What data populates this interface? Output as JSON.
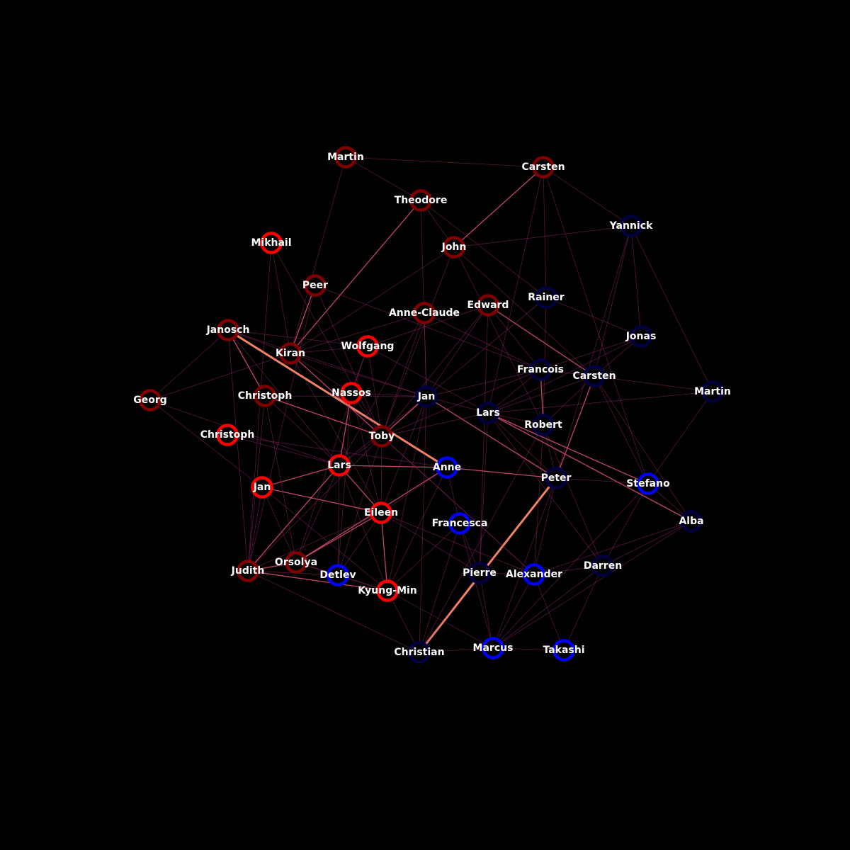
{
  "colors": {
    "background": "#000000",
    "label": "#ffffff",
    "node_fill": "#000000",
    "edge_strong": "#ff8a6a",
    "edge_mid": "#e8507a",
    "edge_faint": "#b02a7a"
  },
  "nodes": [
    {
      "id": "martin_top",
      "label": "Martin",
      "color": "#800000"
    },
    {
      "id": "carsten_top",
      "label": "Carsten",
      "color": "#800000"
    },
    {
      "id": "theodore",
      "label": "Theodore",
      "color": "#800000"
    },
    {
      "id": "yannick",
      "label": "Yannick",
      "color": "#000040"
    },
    {
      "id": "mikhail",
      "label": "Mikhail",
      "color": "#ff0000"
    },
    {
      "id": "john",
      "label": "John",
      "color": "#800000"
    },
    {
      "id": "peer",
      "label": "Peer",
      "color": "#800000"
    },
    {
      "id": "rainer",
      "label": "Rainer",
      "color": "#000040"
    },
    {
      "id": "edward",
      "label": "Edward",
      "color": "#800000"
    },
    {
      "id": "anne_claude",
      "label": "Anne-Claude",
      "color": "#800000"
    },
    {
      "id": "janosch",
      "label": "Janosch",
      "color": "#800000"
    },
    {
      "id": "jonas",
      "label": "Jonas",
      "color": "#000040"
    },
    {
      "id": "kiran",
      "label": "Kiran",
      "color": "#800000"
    },
    {
      "id": "wolfgang",
      "label": "Wolfgang",
      "color": "#ff0000"
    },
    {
      "id": "francois",
      "label": "Francois",
      "color": "#000040"
    },
    {
      "id": "carsten_mid",
      "label": "Carsten",
      "color": "#000040"
    },
    {
      "id": "martin_right",
      "label": "Martin",
      "color": "#000040"
    },
    {
      "id": "georg",
      "label": "Georg",
      "color": "#800000"
    },
    {
      "id": "christoph_a",
      "label": "Christoph",
      "color": "#800000"
    },
    {
      "id": "nassos",
      "label": "Nassos",
      "color": "#ff0000"
    },
    {
      "id": "jan_mid",
      "label": "Jan",
      "color": "#000040"
    },
    {
      "id": "lars_mid",
      "label": "Lars",
      "color": "#000040"
    },
    {
      "id": "robert",
      "label": "Robert",
      "color": "#000040"
    },
    {
      "id": "christoph_b",
      "label": "Christoph",
      "color": "#ff0000"
    },
    {
      "id": "toby",
      "label": "Toby",
      "color": "#800000"
    },
    {
      "id": "lars_left",
      "label": "Lars",
      "color": "#ff0000"
    },
    {
      "id": "anne",
      "label": "Anne",
      "color": "#0000ff"
    },
    {
      "id": "peter",
      "label": "Peter",
      "color": "#000040"
    },
    {
      "id": "stefano",
      "label": "Stefano",
      "color": "#0000ff"
    },
    {
      "id": "jan_left",
      "label": "Jan",
      "color": "#ff0000"
    },
    {
      "id": "eileen",
      "label": "Eileen",
      "color": "#ff0000"
    },
    {
      "id": "francesca",
      "label": "Francesca",
      "color": "#0000ff"
    },
    {
      "id": "alba",
      "label": "Alba",
      "color": "#000040"
    },
    {
      "id": "judith",
      "label": "Judith",
      "color": "#800000"
    },
    {
      "id": "orsolya",
      "label": "Orsolya",
      "color": "#800000"
    },
    {
      "id": "detlev",
      "label": "Detlev",
      "color": "#0000ff"
    },
    {
      "id": "kyung_min",
      "label": "Kyung-Min",
      "color": "#ff0000"
    },
    {
      "id": "pierre",
      "label": "Pierre",
      "color": "#000040"
    },
    {
      "id": "alexander",
      "label": "Alexander",
      "color": "#0000ff"
    },
    {
      "id": "darren",
      "label": "Darren",
      "color": "#000040"
    },
    {
      "id": "christian",
      "label": "Christian",
      "color": "#000040"
    },
    {
      "id": "marcus",
      "label": "Marcus",
      "color": "#0000ff"
    },
    {
      "id": "takashi",
      "label": "Takashi",
      "color": "#0000ff"
    }
  ],
  "edges": [
    [
      "janosch",
      "anne",
      3
    ],
    [
      "christian",
      "peter",
      3
    ],
    [
      "theodore",
      "kiran",
      2
    ],
    [
      "peer",
      "kiran",
      2
    ],
    [
      "lars_left",
      "judith",
      2
    ],
    [
      "janosch",
      "christoph_a",
      2
    ],
    [
      "jan_mid",
      "peter",
      2
    ],
    [
      "lars_left",
      "anne",
      2
    ],
    [
      "eileen",
      "kyung_min",
      2
    ],
    [
      "judith",
      "kyung_min",
      2
    ],
    [
      "lars_left",
      "eileen",
      2
    ],
    [
      "jan_left",
      "lars_left",
      2
    ],
    [
      "jan_left",
      "eileen",
      2
    ],
    [
      "eileen",
      "orsolya",
      2
    ],
    [
      "nassos",
      "lars_left",
      2
    ],
    [
      "carsten_top",
      "john",
      2
    ],
    [
      "anne",
      "peter",
      2
    ],
    [
      "lars_mid",
      "stefano",
      2
    ],
    [
      "lars_mid",
      "alba",
      2
    ],
    [
      "edward",
      "carsten_mid",
      2
    ],
    [
      "christoph_a",
      "toby",
      2
    ],
    [
      "kiran",
      "toby",
      2
    ],
    [
      "jan_mid",
      "toby",
      2
    ],
    [
      "judith",
      "orsolya",
      2
    ],
    [
      "orsolya",
      "anne",
      2
    ],
    [
      "francois",
      "robert",
      2
    ],
    [
      "carsten_mid",
      "peter",
      2
    ],
    [
      "georg",
      "janosch",
      1
    ],
    [
      "georg",
      "kiran",
      1
    ],
    [
      "georg",
      "jan_left",
      1
    ],
    [
      "georg",
      "lars_left",
      1
    ],
    [
      "christoph_b",
      "anne",
      1
    ],
    [
      "christoph_b",
      "lars_left",
      1
    ],
    [
      "mikhail",
      "kiran",
      1
    ],
    [
      "mikhail",
      "toby",
      1
    ],
    [
      "peer",
      "francois",
      1
    ],
    [
      "peer",
      "judith",
      1
    ],
    [
      "peer",
      "toby",
      1
    ],
    [
      "martin_top",
      "carsten_top",
      1
    ],
    [
      "martin_top",
      "theodore",
      1
    ],
    [
      "martin_top",
      "kiran",
      1
    ],
    [
      "theodore",
      "john",
      1
    ],
    [
      "theodore",
      "jan_mid",
      1
    ],
    [
      "theodore",
      "rainer",
      1
    ],
    [
      "carsten_top",
      "yannick",
      1
    ],
    [
      "carsten_top",
      "rainer",
      1
    ],
    [
      "carsten_top",
      "stefano",
      1
    ],
    [
      "carsten_top",
      "lars_mid",
      1
    ],
    [
      "john",
      "yannick",
      1
    ],
    [
      "john",
      "toby",
      1
    ],
    [
      "john",
      "carsten_mid",
      1
    ],
    [
      "john",
      "robert",
      1
    ],
    [
      "john",
      "kiran",
      1
    ],
    [
      "yannick",
      "carsten_mid",
      1
    ],
    [
      "yannick",
      "jonas",
      1
    ],
    [
      "yannick",
      "peter",
      1
    ],
    [
      "yannick",
      "martin_right",
      1
    ],
    [
      "rainer",
      "jan_mid",
      1
    ],
    [
      "rainer",
      "jonas",
      1
    ],
    [
      "rainer",
      "robert",
      1
    ],
    [
      "edward",
      "jan_mid",
      1
    ],
    [
      "edward",
      "toby",
      1
    ],
    [
      "edward",
      "wolfgang",
      1
    ],
    [
      "edward",
      "pierre",
      1
    ],
    [
      "anne_claude",
      "jan_mid",
      1
    ],
    [
      "anne_claude",
      "toby",
      1
    ],
    [
      "anne_claude",
      "lars_left",
      1
    ],
    [
      "anne_claude",
      "kiran",
      1
    ],
    [
      "anne_claude",
      "francois",
      1
    ],
    [
      "janosch",
      "kiran",
      1
    ],
    [
      "janosch",
      "lars_left",
      1
    ],
    [
      "janosch",
      "judith",
      1
    ],
    [
      "janosch",
      "wolfgang",
      1
    ],
    [
      "kiran",
      "wolfgang",
      1
    ],
    [
      "kiran",
      "nassos",
      1
    ],
    [
      "kiran",
      "eileen",
      1
    ],
    [
      "kiran",
      "jan_mid",
      1
    ],
    [
      "kiran",
      "alexander",
      1
    ],
    [
      "wolfgang",
      "nassos",
      1
    ],
    [
      "wolfgang",
      "lars_mid",
      1
    ],
    [
      "wolfgang",
      "toby",
      1
    ],
    [
      "wolfgang",
      "orsolya",
      1
    ],
    [
      "francois",
      "jan_mid",
      1
    ],
    [
      "francois",
      "carsten_mid",
      1
    ],
    [
      "francois",
      "lars_mid",
      1
    ],
    [
      "francois",
      "toby",
      1
    ],
    [
      "carsten_mid",
      "martin_right",
      1
    ],
    [
      "carsten_mid",
      "lars_mid",
      1
    ],
    [
      "carsten_mid",
      "alba",
      1
    ],
    [
      "carsten_mid",
      "robert",
      1
    ],
    [
      "carsten_mid",
      "stefano",
      1
    ],
    [
      "carsten_mid",
      "jonas",
      1
    ],
    [
      "martin_right",
      "lars_mid",
      1
    ],
    [
      "martin_right",
      "stefano",
      1
    ],
    [
      "christoph_a",
      "lars_left",
      1
    ],
    [
      "christoph_a",
      "judith",
      1
    ],
    [
      "christoph_a",
      "orsolya",
      1
    ],
    [
      "christoph_a",
      "jan_mid",
      1
    ],
    [
      "nassos",
      "jan_mid",
      1
    ],
    [
      "nassos",
      "toby",
      1
    ],
    [
      "nassos",
      "eileen",
      1
    ],
    [
      "nassos",
      "detlev",
      1
    ],
    [
      "jan_mid",
      "lars_mid",
      1
    ],
    [
      "jan_mid",
      "lars_left",
      1
    ],
    [
      "jan_mid",
      "eileen",
      1
    ],
    [
      "jan_mid",
      "christian",
      1
    ],
    [
      "jan_mid",
      "kyung_min",
      1
    ],
    [
      "lars_mid",
      "robert",
      1
    ],
    [
      "lars_mid",
      "peter",
      1
    ],
    [
      "lars_mid",
      "pierre",
      1
    ],
    [
      "lars_mid",
      "toby",
      1
    ],
    [
      "lars_mid",
      "darren",
      1
    ],
    [
      "robert",
      "peter",
      1
    ],
    [
      "robert",
      "alexander",
      1
    ],
    [
      "robert",
      "darren",
      1
    ],
    [
      "robert",
      "christian",
      1
    ],
    [
      "toby",
      "lars_left",
      1
    ],
    [
      "toby",
      "eileen",
      1
    ],
    [
      "toby",
      "judith",
      1
    ],
    [
      "toby",
      "detlev",
      1
    ],
    [
      "toby",
      "alexander",
      1
    ],
    [
      "lars_left",
      "kyung_min",
      1
    ],
    [
      "lars_left",
      "orsolya",
      1
    ],
    [
      "lars_left",
      "detlev",
      1
    ],
    [
      "anne",
      "francesca",
      1
    ],
    [
      "anne",
      "eileen",
      1
    ],
    [
      "anne",
      "kyung_min",
      1
    ],
    [
      "peter",
      "stefano",
      1
    ],
    [
      "peter",
      "alexander",
      1
    ],
    [
      "peter",
      "marcus",
      1
    ],
    [
      "stefano",
      "alba",
      1
    ],
    [
      "stefano",
      "darren",
      1
    ],
    [
      "stefano",
      "marcus",
      1
    ],
    [
      "jan_left",
      "judith",
      1
    ],
    [
      "jan_left",
      "orsolya",
      1
    ],
    [
      "jan_left",
      "kyung_min",
      1
    ],
    [
      "eileen",
      "judith",
      1
    ],
    [
      "eileen",
      "detlev",
      1
    ],
    [
      "eileen",
      "pierre",
      1
    ],
    [
      "eileen",
      "alexander",
      1
    ],
    [
      "francesca",
      "pierre",
      1
    ],
    [
      "francesca",
      "kyung_min",
      1
    ],
    [
      "francesca",
      "marcus",
      1
    ],
    [
      "alba",
      "darren",
      1
    ],
    [
      "alba",
      "marcus",
      1
    ],
    [
      "alba",
      "alexander",
      1
    ],
    [
      "judith",
      "detlev",
      1
    ],
    [
      "judith",
      "christian",
      1
    ],
    [
      "orsolya",
      "kyung_min",
      1
    ],
    [
      "orsolya",
      "detlev",
      1
    ],
    [
      "detlev",
      "kyung_min",
      1
    ],
    [
      "kyung_min",
      "marcus",
      1
    ],
    [
      "pierre",
      "alexander",
      1
    ],
    [
      "pierre",
      "marcus",
      1
    ],
    [
      "pierre",
      "christian",
      1
    ],
    [
      "alexander",
      "darren",
      1
    ],
    [
      "alexander",
      "marcus",
      1
    ],
    [
      "alexander",
      "takashi",
      1
    ],
    [
      "darren",
      "marcus",
      1
    ],
    [
      "darren",
      "takashi",
      1
    ],
    [
      "christian",
      "marcus",
      1
    ],
    [
      "marcus",
      "takashi",
      1
    ],
    [
      "christian",
      "kyung_min",
      1
    ],
    [
      "francesca",
      "christian",
      1
    ],
    [
      "jonas",
      "francois",
      1
    ],
    [
      "jonas",
      "lars_mid",
      1
    ],
    [
      "edward",
      "francois",
      1
    ],
    [
      "mikhail",
      "judith",
      1
    ],
    [
      "janosch",
      "jan_mid",
      1
    ]
  ]
}
